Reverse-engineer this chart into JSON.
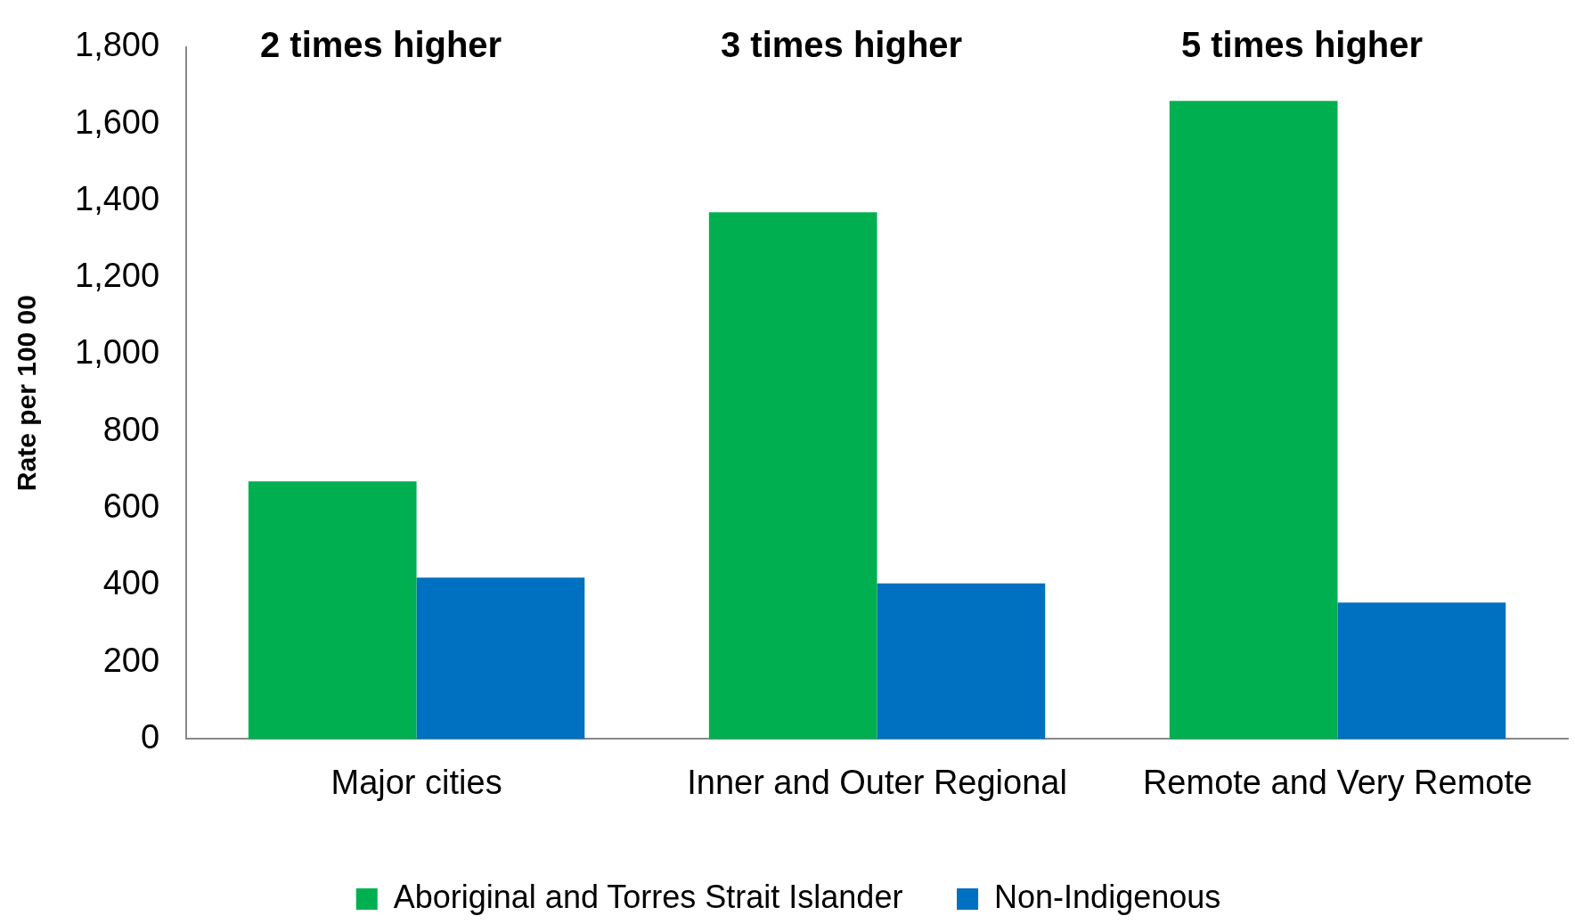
{
  "chart_data": {
    "type": "bar",
    "ylabel": "Rate per 100 00",
    "categories": [
      "Major cities",
      "Inner and Outer Regional",
      "Remote and Very Remote"
    ],
    "series": [
      {
        "name": "Aboriginal and Torres Strait Islander",
        "color": "#00b050",
        "values": [
          670,
          1370,
          1660
        ]
      },
      {
        "name": "Non-Indigenous",
        "color": "#0070c0",
        "values": [
          420,
          405,
          355
        ]
      }
    ],
    "ylim": [
      0,
      1800
    ],
    "yticks": [
      {
        "value": 0,
        "label": "0"
      },
      {
        "value": 200,
        "label": "200"
      },
      {
        "value": 400,
        "label": "400"
      },
      {
        "value": 600,
        "label": "600"
      },
      {
        "value": 800,
        "label": "800"
      },
      {
        "value": 1000,
        "label": "1,000"
      },
      {
        "value": 1200,
        "label": "1,200"
      },
      {
        "value": 1400,
        "label": "1,400"
      },
      {
        "value": 1600,
        "label": "1,600"
      },
      {
        "value": 1800,
        "label": "1,800"
      }
    ],
    "grid": false,
    "legend": "bottom",
    "annotations": [
      "2 times higher",
      "3 times higher",
      "5 times higher"
    ]
  }
}
